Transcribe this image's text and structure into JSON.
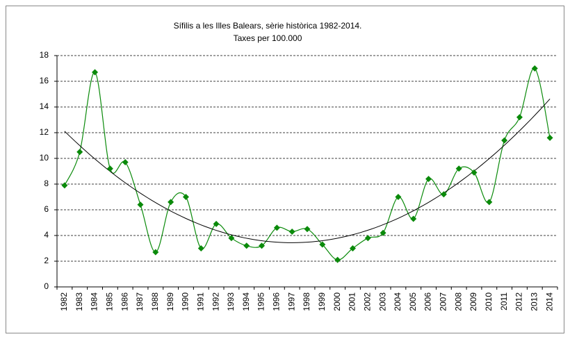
{
  "chart_data": {
    "type": "line",
    "title": "Sífilis a les Illes Balears, sèrie històrica 1982-2014.",
    "subtitle": "Taxes per 100.000",
    "categories": [
      "1982",
      "1983",
      "1984",
      "1985",
      "1986",
      "1987",
      "1988",
      "1989",
      "1990",
      "1991",
      "1992",
      "1993",
      "1994",
      "1995",
      "1996",
      "1997",
      "1998",
      "1999",
      "2000",
      "2001",
      "2002",
      "2003",
      "2004",
      "2005",
      "2006",
      "2007",
      "2008",
      "2009",
      "2010",
      "2011",
      "2012",
      "2013",
      "2014"
    ],
    "series": [
      {
        "color": "#0a8a0a",
        "smooth": true,
        "marker": "diamond",
        "values": [
          7.9,
          10.5,
          16.7,
          9.2,
          9.7,
          6.4,
          2.7,
          6.6,
          7.0,
          3.0,
          4.9,
          3.8,
          3.2,
          3.2,
          4.6,
          4.3,
          4.5,
          3.3,
          2.1,
          3.0,
          3.8,
          4.2,
          7.0,
          5.3,
          8.4,
          7.2,
          9.2,
          8.9,
          6.6,
          11.4,
          13.2,
          17.0,
          11.6
        ]
      }
    ],
    "trendline": {
      "type": "polynomial",
      "order": 2,
      "color": "#000000"
    },
    "ylim": [
      0,
      18
    ],
    "yticks": [
      0,
      2,
      4,
      6,
      8,
      10,
      12,
      14,
      16,
      18
    ],
    "grid": true
  }
}
